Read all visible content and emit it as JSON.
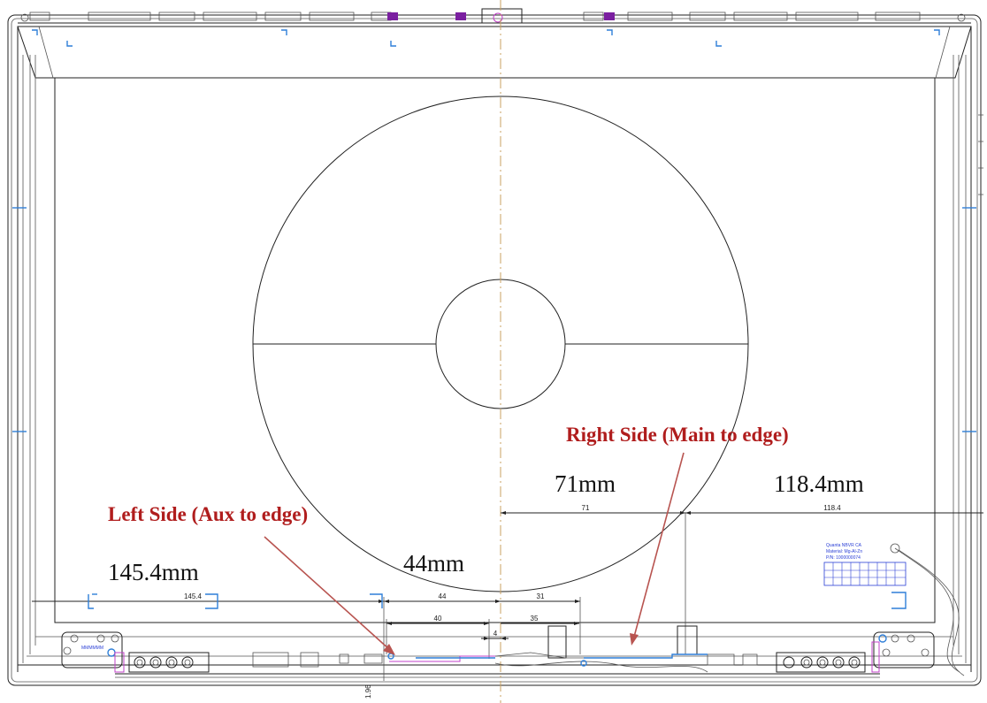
{
  "annotations": {
    "right_side": "Right Side (Main to edge)",
    "left_side": "Left Side (Aux to edge)",
    "mm_71": "71mm",
    "mm_118_4": "118.4mm",
    "mm_145_4": "145.4mm",
    "mm_44": "44mm"
  },
  "dimensions": {
    "d71": "71",
    "d118_4": "118.4",
    "d145_4": "145.4",
    "d44": "44",
    "d31": "31",
    "d40": "40",
    "d35": "35",
    "d4": "4",
    "d1_96": "1.96"
  },
  "colors": {
    "annotation_red": "#b01d1d",
    "arrow": "#b85450",
    "bracket_blue": "#2f7fd8",
    "center_line": "#c8a060"
  }
}
